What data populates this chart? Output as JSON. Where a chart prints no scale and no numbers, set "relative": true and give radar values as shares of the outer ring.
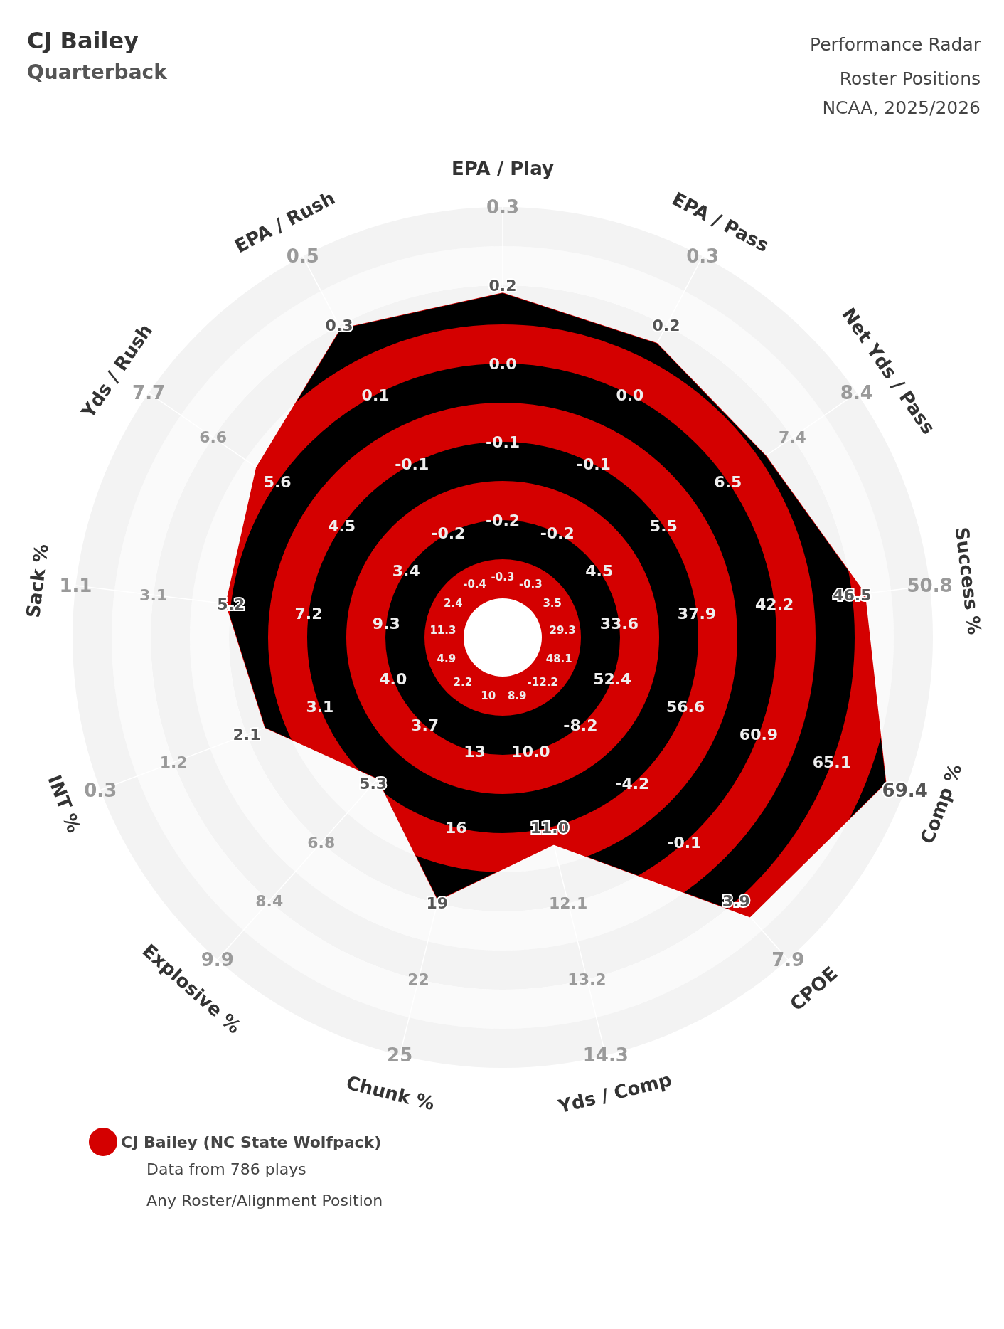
{
  "chart_data": {
    "type": "radar",
    "title": "CJ Bailey",
    "subtitle": "Quarterback",
    "relative": true,
    "legend": "bottom left",
    "categories": [
      "EPA / Play",
      "EPA / Pass",
      "Net Yds / Pass",
      "Success %",
      "Comp %",
      "CPOE",
      "Yds / Comp",
      "Chunk %",
      "Explosive %",
      "INT %",
      "Sack %",
      "Yds / Rush",
      "EPA / Rush"
    ],
    "series": [
      {
        "name": "CJ Bailey (NC State Wolfpack)",
        "color": "#d40000",
        "values": [
          0.84,
          0.81,
          0.78,
          0.89,
          1,
          0.91,
          0.52,
          0.66,
          0.46,
          0.62,
          0.68,
          0.73,
          0.85
        ]
      }
    ],
    "annotations": [
      "Performance Radar",
      "Roster Positions",
      "NCAA, 2025/2026",
      "Data from 786 plays",
      "Any Roster/Alignment Position",
      "-0.3",
      "-0.2",
      "-0.1",
      "0.0",
      "0.2",
      "0.3",
      "-0.3",
      "-0.2",
      "-0.1",
      "0.0",
      "0.2",
      "0.3",
      "3.5",
      "4.5",
      "5.5",
      "6.5",
      "7.4",
      "8.4",
      "29.3",
      "33.6",
      "37.9",
      "42.2",
      "46.5",
      "50.8",
      "48.1",
      "52.4",
      "56.6",
      "60.9",
      "65.1",
      "69.4",
      "-12.2",
      "-8.2",
      "-4.2",
      "-0.1",
      "3.9",
      "7.9",
      "8.9",
      "10.0",
      "11.0",
      "12.1",
      "13.2",
      "14.3",
      "10",
      "13",
      "16",
      "19",
      "22",
      "25",
      "2.2",
      "3.7",
      "5.3",
      "6.8",
      "8.4",
      "9.9",
      "4.9",
      "4.0",
      "3.1",
      "2.1",
      "1.2",
      "0.3",
      "11.3",
      "9.3",
      "7.2",
      "5.2",
      "3.1",
      "1.1",
      "2.4",
      "3.4",
      "4.5",
      "5.6",
      "6.6",
      "7.7",
      "-0.4",
      "-0.2",
      "-0.1",
      "0.1",
      "0.3",
      "0.5"
    ]
  }
}
